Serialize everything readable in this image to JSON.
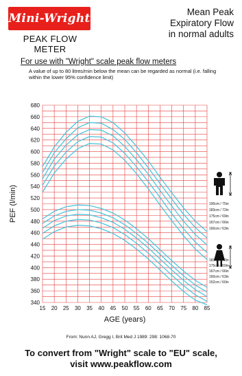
{
  "logo_text": "Mini-Wright",
  "product_name": "PEAK FLOW METER",
  "heading_lines": [
    "Mean Peak",
    "Expiratory Flow",
    "in normal adults"
  ],
  "subtitle": "For use with \"Wright\" scale peak flow meters",
  "note": "A value of up to 80 litres/min below the mean can be regarded as normal (i.e. falling within the lower 95% confidence limit)",
  "source": "From: Nunn AJ, Gregg I, Brit Med J 1989: 298: 1068-70",
  "footer_lines": [
    "To convert from \"Wright\" scale to \"EU\" scale,",
    "visit   www.peakflow.com"
  ],
  "colors": {
    "grid": "#e43a3a",
    "curve": "#4cc4dc",
    "logo_bg": "#e8201c"
  },
  "icons": [
    "man-icon",
    "woman-icon",
    "height-arrow-icon"
  ],
  "chart_data": {
    "type": "line",
    "xlabel": "AGE (years)",
    "ylabel": "PEF  (l/min)",
    "x": [
      15,
      20,
      25,
      30,
      35,
      40,
      45,
      50,
      55,
      60,
      65,
      70,
      75,
      80,
      85
    ],
    "xlim": [
      15,
      85
    ],
    "ylim": [
      340,
      680
    ],
    "yticks": [
      340,
      360,
      380,
      400,
      420,
      440,
      460,
      480,
      500,
      520,
      540,
      560,
      580,
      600,
      620,
      640,
      660,
      680
    ],
    "grid": true,
    "groups": [
      {
        "name": "Men",
        "series": [
          {
            "name": "190cm / 75in",
            "values": [
              574,
              608,
              633,
              652,
              661,
              660,
              650,
              632,
              609,
              584,
              556,
              529,
              503,
              480,
              462
            ]
          },
          {
            "name": "183cm / 72in",
            "values": [
              564,
              598,
              622,
              641,
              650,
              649,
              638,
              621,
              598,
              572,
              545,
              518,
              492,
              469,
              451
            ]
          },
          {
            "name": "175cm / 69in",
            "values": [
              553,
              587,
              611,
              629,
              638,
              637,
              627,
              609,
              586,
              561,
              533,
              506,
              480,
              457,
              439
            ]
          },
          {
            "name": "167cm / 66in",
            "values": [
              542,
              575,
              599,
              617,
              626,
              625,
              615,
              597,
              574,
              548,
              521,
              493,
              467,
              444,
              426
            ]
          },
          {
            "name": "160cm / 63in",
            "values": [
              530,
              563,
              587,
              605,
              614,
              613,
              603,
              585,
              562,
              536,
              508,
              481,
              455,
              432,
              414
            ]
          }
        ]
      },
      {
        "name": "Women",
        "series": [
          {
            "name": "183cm / 72in",
            "values": [
              484,
              497,
              505,
              508,
              507,
              502,
              494,
              482,
              467,
              450,
              431,
              412,
              394,
              378,
              366
            ]
          },
          {
            "name": "175cm / 69in",
            "values": [
              476,
              489,
              497,
              500,
              499,
              494,
              486,
              474,
              459,
              442,
              423,
              404,
              386,
              370,
              358
            ]
          },
          {
            "name": "167cm / 66in",
            "values": [
              468,
              481,
              489,
              492,
              491,
              486,
              478,
              466,
              451,
              434,
              415,
              396,
              378,
              362,
              350
            ]
          },
          {
            "name": "160cm / 63in",
            "values": [
              459,
              472,
              480,
              483,
              482,
              477,
              469,
              457,
              442,
              425,
              406,
              387,
              369,
              353,
              342
            ]
          },
          {
            "name": "152cm / 60in",
            "values": [
              449,
              462,
              470,
              473,
              472,
              467,
              459,
              447,
              432,
              415,
              396,
              377,
              359,
              344,
              336
            ]
          }
        ]
      }
    ]
  }
}
